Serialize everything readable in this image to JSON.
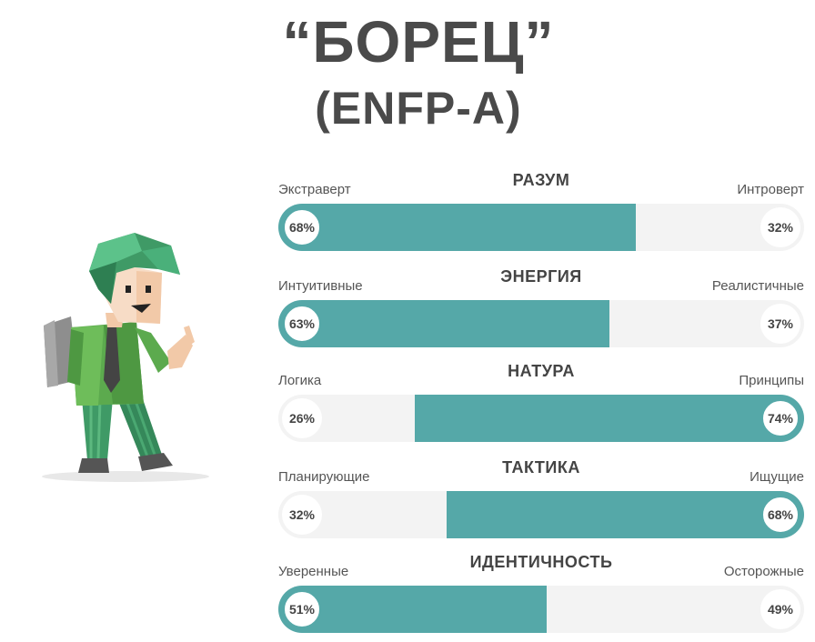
{
  "title": "“БОРЕЦ”",
  "subtitle": "(ENFP-A)",
  "accent_color": "#55a8a8",
  "traits": [
    {
      "name": "РАЗУМ",
      "left_label": "Экстраверт",
      "right_label": "Интроверт",
      "left_pct": "68%",
      "right_pct": "32%",
      "dominant": "left",
      "value": 68
    },
    {
      "name": "ЭНЕРГИЯ",
      "left_label": "Интуитивные",
      "right_label": "Реалистичные",
      "left_pct": "63%",
      "right_pct": "37%",
      "dominant": "left",
      "value": 63
    },
    {
      "name": "НАТУРА",
      "left_label": "Логика",
      "right_label": "Принципы",
      "left_pct": "26%",
      "right_pct": "74%",
      "dominant": "right",
      "value": 74
    },
    {
      "name": "ТАКТИКА",
      "left_label": "Планирующие",
      "right_label": "Ищущие",
      "left_pct": "32%",
      "right_pct": "68%",
      "dominant": "right",
      "value": 68
    },
    {
      "name": "ИДЕНТИЧНОСТЬ",
      "left_label": "Уверенные",
      "right_label": "Осторожные",
      "left_pct": "51%",
      "right_pct": "49%",
      "dominant": "left",
      "value": 51
    }
  ]
}
